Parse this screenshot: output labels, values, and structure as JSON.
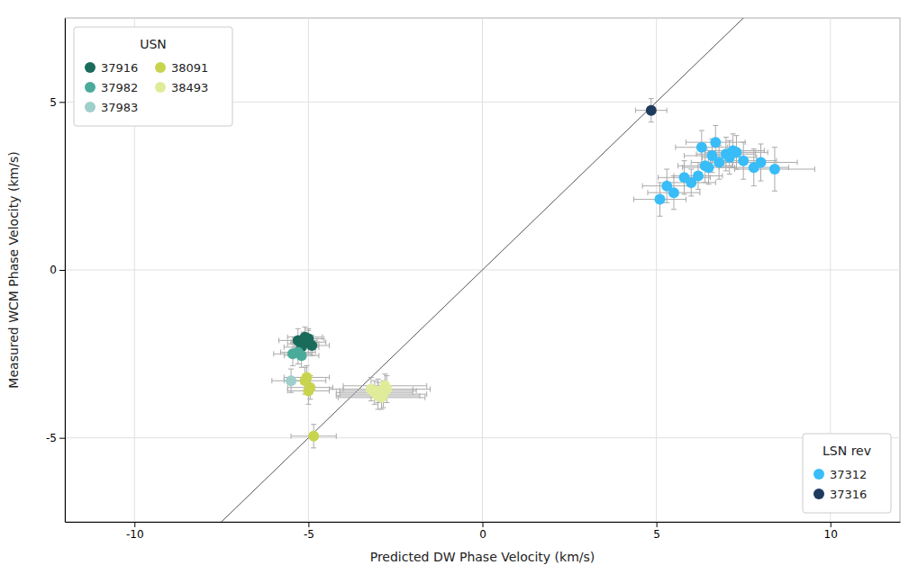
{
  "chart_data": {
    "type": "scatter",
    "xlabel": "Predicted DW Phase Velocity (km/s)",
    "ylabel": "Measured WCM Phase Velocity (km/s)",
    "xlim": [
      -12,
      12
    ],
    "ylim": [
      -7.5,
      7.5
    ],
    "xticks": [
      -10,
      -5,
      0,
      5,
      10
    ],
    "yticks": [
      -5,
      0,
      5
    ],
    "grid": true,
    "series": [
      {
        "name": "37916",
        "color": "#1a6b5a",
        "x": [
          -5.3,
          -5.1,
          -5.0,
          -4.9,
          -5.2,
          -5.0,
          -5.15
        ],
        "values": [
          -2.1,
          -2.0,
          -2.15,
          -2.25,
          -2.3,
          -2.05,
          -2.2
        ],
        "xerr": [
          0.55,
          0.5,
          0.5,
          0.5,
          0.5,
          0.45,
          0.45
        ],
        "yerr": [
          0.35,
          0.3,
          0.35,
          0.3,
          0.3,
          0.3,
          0.35
        ]
      },
      {
        "name": "37982",
        "color": "#4aab9a",
        "x": [
          -5.45,
          -5.2,
          -5.3
        ],
        "values": [
          -2.5,
          -2.55,
          -2.45
        ],
        "xerr": [
          0.55,
          0.5,
          0.5
        ],
        "yerr": [
          0.35,
          0.35,
          0.35
        ]
      },
      {
        "name": "37983",
        "color": "#9ecfca",
        "x": [
          -5.5
        ],
        "values": [
          -3.3
        ],
        "xerr": [
          0.55
        ],
        "yerr": [
          0.35
        ]
      },
      {
        "name": "38091",
        "color": "#c8d44e",
        "x": [
          -5.05,
          -5.1,
          -4.95,
          -5.0,
          -4.85
        ],
        "values": [
          -3.2,
          -3.3,
          -3.5,
          -3.6,
          -4.95
        ],
        "xerr": [
          0.65,
          0.6,
          0.65,
          0.6,
          0.65
        ],
        "yerr": [
          0.35,
          0.4,
          0.35,
          0.4,
          0.35
        ]
      },
      {
        "name": "38493",
        "color": "#e0ec9a",
        "x": [
          -3.2,
          -3.0,
          -2.85,
          -3.0,
          -2.9,
          -3.1,
          -2.75,
          -2.8
        ],
        "values": [
          -3.55,
          -3.6,
          -3.7,
          -3.75,
          -3.8,
          -3.65,
          -3.55,
          -3.45
        ],
        "xerr": [
          1.2,
          1.1,
          1.25,
          1.2,
          1.25,
          1.1,
          1.25,
          1.2
        ],
        "yerr": [
          0.35,
          0.35,
          0.4,
          0.4,
          0.35,
          0.35,
          0.4,
          0.35
        ]
      },
      {
        "name": "37312",
        "color": "#38bdf8",
        "x": [
          5.1,
          5.5,
          6.0,
          6.2,
          6.5,
          6.8,
          7.0,
          7.2,
          7.5,
          7.8,
          8.0,
          8.4,
          6.3,
          6.7,
          7.1,
          5.3,
          5.8,
          6.4,
          6.6,
          7.3
        ],
        "values": [
          2.1,
          2.3,
          2.6,
          2.8,
          3.05,
          3.2,
          3.45,
          3.55,
          3.25,
          3.05,
          3.2,
          3.0,
          3.65,
          3.8,
          3.35,
          2.5,
          2.75,
          3.1,
          3.4,
          3.5
        ],
        "xerr": [
          0.75,
          0.75,
          0.7,
          0.7,
          0.75,
          0.8,
          0.85,
          0.9,
          0.95,
          1.0,
          1.05,
          1.15,
          0.75,
          0.85,
          0.78,
          0.7,
          0.75,
          0.78,
          0.8,
          0.9
        ],
        "yerr": [
          0.5,
          0.5,
          0.4,
          0.4,
          0.5,
          0.5,
          0.5,
          0.5,
          0.55,
          0.55,
          0.55,
          0.65,
          0.5,
          0.5,
          0.5,
          0.5,
          0.5,
          0.5,
          0.5,
          0.5
        ]
      },
      {
        "name": "37316",
        "color": "#1e3a5f",
        "x": [
          4.85
        ],
        "values": [
          4.75
        ],
        "xerr": [
          0.45
        ],
        "yerr": [
          0.35
        ]
      }
    ],
    "legend_groups": [
      {
        "title": "USN",
        "legend": "upper left",
        "members": [
          "37916",
          "37982",
          "37983",
          "38091",
          "38493"
        ]
      },
      {
        "title": "LSN rev",
        "legend": "lower right",
        "members": [
          "37312",
          "37316"
        ]
      }
    ]
  }
}
